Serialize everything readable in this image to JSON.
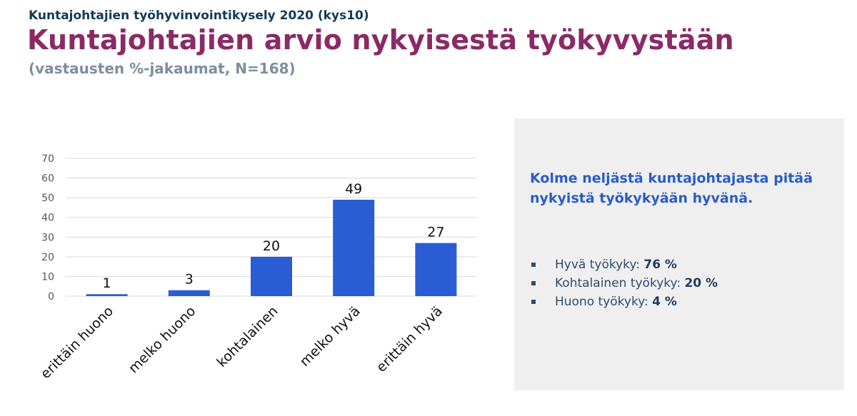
{
  "header": {
    "kicker": "Kuntajohtajien työhyvinvointikysely 2020 (kys10)",
    "title": "Kuntajohtajien arvio nykyisestä työkyvystään",
    "subtitle": "(vastausten %-jakaumat, N=168)"
  },
  "chart_data": {
    "type": "bar",
    "categories": [
      "erittäin huono",
      "melko huono",
      "kohtalainen",
      "melko hyvä",
      "erittäin hyvä"
    ],
    "values": [
      1,
      3,
      20,
      49,
      27
    ],
    "ylim": [
      0,
      70
    ],
    "yticks": [
      0,
      10,
      20,
      30,
      40,
      50,
      60,
      70
    ],
    "grid": true,
    "bar_color": "#2a5cd4",
    "data_labels": true
  },
  "panel": {
    "headline": "Kolme neljästä kuntajohtajasta pitää  nykyistä työkykyään hyvänä.",
    "bullets": [
      {
        "label": "Hyvä työkyky: ",
        "value": "76 %"
      },
      {
        "label": "Kohtalainen työkyky: ",
        "value": "20 %"
      },
      {
        "label": "Huono työkyky: ",
        "value": "4 %"
      }
    ]
  }
}
